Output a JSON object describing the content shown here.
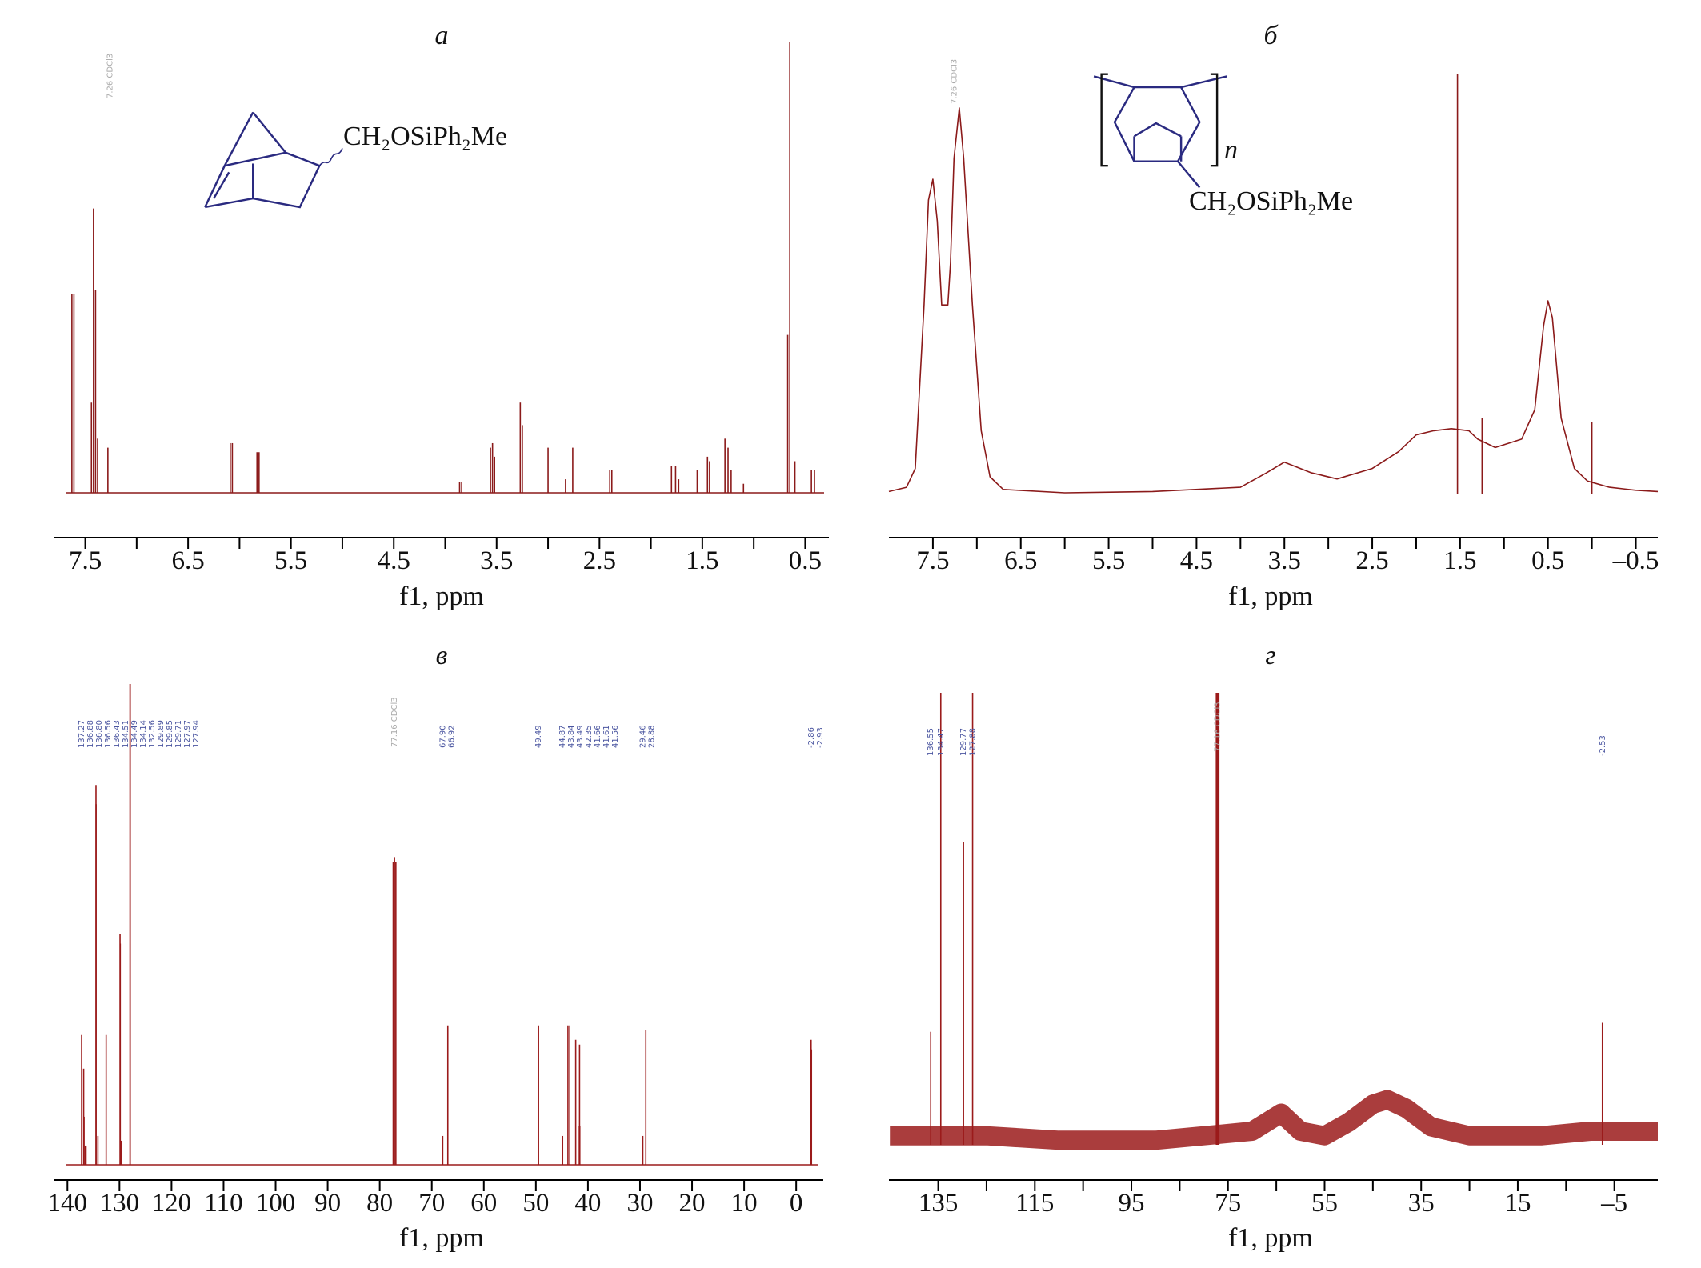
{
  "chart_data": [
    {
      "type": "spectrum",
      "title": "а",
      "xlabel": "f1, ppm",
      "formula": "CH₂OSiPh₂Me",
      "solvent_label": "7.26 CDCl3",
      "color": "#8b1a1a",
      "xlim": [
        7.8,
        0.27
      ],
      "ylim": [
        0,
        100
      ],
      "xticks": [
        7.5,
        6.5,
        5.5,
        4.5,
        3.5,
        2.5,
        1.5,
        0.5
      ],
      "xminorticks": [
        7,
        6,
        5,
        4,
        3,
        2,
        1
      ],
      "x": [
        7.63,
        7.61,
        7.44,
        7.42,
        7.4,
        7.38,
        7.28,
        6.09,
        6.07,
        5.83,
        5.81,
        3.86,
        3.84,
        3.56,
        3.54,
        3.52,
        3.27,
        3.25,
        3.0,
        2.83,
        2.76,
        2.4,
        2.38,
        1.8,
        1.76,
        1.73,
        1.55,
        1.45,
        1.43,
        1.28,
        1.25,
        1.22,
        1.1,
        0.67,
        0.65,
        0.6,
        0.44,
        0.41
      ],
      "values": [
        44,
        44,
        20,
        63,
        45,
        12,
        10,
        11,
        11,
        9,
        9,
        2.4,
        2.4,
        10,
        11,
        8,
        20,
        15,
        10,
        3,
        10,
        5,
        5,
        6,
        6,
        3,
        5,
        8,
        7,
        12,
        10,
        5,
        2,
        35,
        100,
        7,
        5,
        5
      ]
    },
    {
      "type": "spectrum",
      "title": "б",
      "xlabel": "f1, ppm",
      "formula": "CH₂OSiPh₂Me",
      "repeat_label": "n",
      "solvent_label": "7.26 CDCl3",
      "color": "#8b1a1a",
      "xlim": [
        8.0,
        -0.75
      ],
      "ylim": [
        0,
        100
      ],
      "xticks": [
        7.5,
        6.5,
        5.5,
        4.5,
        3.5,
        2.5,
        1.5,
        0.5,
        {
          "value": -0.5,
          "label": "–0.5"
        }
      ],
      "xminorticks": [
        7,
        6,
        5,
        4,
        3,
        2,
        1,
        0
      ],
      "envelope_x": [
        8.0,
        7.8,
        7.7,
        7.6,
        7.55,
        7.5,
        7.45,
        7.4,
        7.33,
        7.3,
        7.26,
        7.2,
        7.15,
        7.05,
        6.95,
        6.85,
        6.7,
        6.0,
        5.0,
        4.0,
        3.7,
        3.5,
        3.2,
        2.9,
        2.5,
        2.2,
        2.0,
        1.8,
        1.6,
        1.4,
        1.3,
        1.1,
        0.95,
        0.8,
        0.65,
        0.55,
        0.5,
        0.45,
        0.35,
        0.2,
        0.05,
        -0.2,
        -0.5,
        -0.75
      ],
      "envelope_values": [
        0.5,
        1.5,
        6,
        45,
        70,
        75,
        65,
        45,
        45,
        55,
        80,
        92,
        80,
        45,
        15,
        4,
        1,
        0.2,
        0.5,
        1.5,
        5,
        7.5,
        5,
        3.5,
        6,
        10,
        14,
        15,
        15.5,
        15,
        13,
        11,
        12,
        13,
        20,
        40,
        46,
        42,
        18,
        6,
        3,
        1.5,
        0.8,
        0.5
      ],
      "x": [
        1.53,
        1.25,
        0.0
      ],
      "values": [
        100,
        18,
        17
      ]
    },
    {
      "type": "spectrum",
      "title": "в",
      "xlabel": "f1, ppm",
      "solvent_label": "77.16 CDCl3",
      "color": "#9b1b1b",
      "xlim": [
        142.5,
        -5.2
      ],
      "ylim": [
        0,
        100
      ],
      "xticks": [
        140,
        130,
        120,
        110,
        100,
        90,
        80,
        70,
        60,
        50,
        40,
        30,
        20,
        10,
        0
      ],
      "x": [
        137.27,
        136.88,
        136.8,
        136.56,
        136.43,
        134.51,
        134.49,
        134.14,
        132.56,
        129.89,
        129.85,
        129.71,
        127.97,
        127.94,
        77.41,
        77.16,
        76.9,
        67.9,
        66.92,
        49.49,
        44.87,
        43.84,
        43.49,
        42.35,
        41.66,
        41.61,
        41.56,
        29.46,
        28.88,
        -2.86,
        -2.93
      ],
      "values": [
        27,
        20,
        10,
        4,
        4,
        79,
        75,
        6,
        27,
        48,
        46,
        5,
        100,
        100,
        63,
        64,
        63,
        6,
        29,
        29,
        6,
        29,
        29,
        26,
        8,
        25,
        8,
        6,
        28,
        26,
        24
      ],
      "peak_labels": [
        "137.27",
        "136.88",
        "136.80",
        "136.56",
        "136.43",
        "134.51",
        "134.49",
        "134.14",
        "132.56",
        "129.89",
        "129.85",
        "129.71",
        "127.97",
        "127.94",
        "67.90",
        "66.92",
        "49.49",
        "44.87",
        "43.84",
        "43.49",
        "42.35",
        "41.66",
        "41.61",
        "41.56",
        "29.46",
        "28.88",
        "-2.86",
        "-2.93"
      ]
    },
    {
      "type": "spectrum",
      "title": "г",
      "xlabel": "f1, ppm",
      "solvent_label": "77.16 CDCl3",
      "color": "#9b1b1b",
      "xlim": [
        145.2,
        -14
      ],
      "ylim": [
        0,
        100
      ],
      "xticks": [
        135,
        115,
        95,
        75,
        55,
        35,
        15,
        {
          "value": -5,
          "label": "–5"
        }
      ],
      "xminorticks": [
        125,
        105,
        85,
        65,
        45,
        25,
        5
      ],
      "envelope_x": [
        145,
        130,
        125,
        110,
        90,
        80,
        70,
        64,
        60,
        55,
        50,
        45,
        42,
        38,
        33,
        25,
        10,
        0,
        -14
      ],
      "envelope_values": [
        2,
        2,
        2,
        1,
        1,
        2,
        3,
        7,
        3,
        2,
        5,
        9,
        10,
        8,
        4,
        2,
        2,
        3,
        3
      ],
      "x": [
        136.55,
        134.47,
        129.77,
        127.88,
        77.41,
        77.16,
        76.9,
        -2.53
      ],
      "values": [
        25,
        100,
        67,
        100,
        100,
        100,
        100,
        27
      ],
      "peak_labels": [
        "136.55",
        "134.47",
        "129.77",
        "127.88",
        "-2.53"
      ]
    }
  ]
}
